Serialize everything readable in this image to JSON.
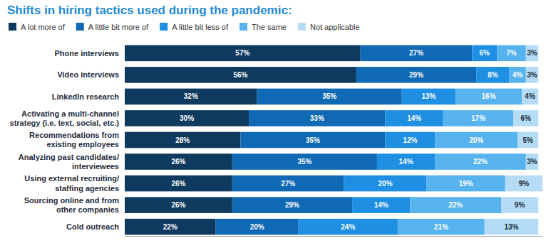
{
  "chart_data": {
    "type": "bar",
    "orientation": "horizontal",
    "stacked": true,
    "data_labels": true,
    "tick_labels": "y",
    "legend": "top-left",
    "title": "Shifts in hiring tactics used during the pandemic:",
    "categories": [
      "Phone interviews",
      "Video interviews",
      "LinkedIn research",
      "Activating a multi-channel\nstrategy (i.e. text, social, etc.)",
      "Recommendations from\nexisting employees",
      "Analyzing past candidates/\ninterviewees",
      "Using external recruiting/\nstaffing agencies",
      "Sourcing online and from\nother companies",
      "Cold outreach"
    ],
    "xlim": [
      0,
      101
    ],
    "series": [
      {
        "name": "A lot more of",
        "color": "#0f3a5f",
        "values": [
          57,
          56,
          32,
          30,
          28,
          26,
          26,
          26,
          22
        ],
        "value_labels": [
          "57%",
          "56%",
          "32%",
          "30%",
          "28%",
          "26%",
          "26%",
          "26%",
          "22%"
        ]
      },
      {
        "name": "A little bit more of",
        "color": "#0f69b4",
        "values": [
          27,
          29,
          35,
          33,
          35,
          35,
          27,
          29,
          20
        ],
        "value_labels": [
          "27%",
          "29%",
          "35%",
          "33%",
          "35%",
          "35%",
          "27%",
          "29%",
          "20%"
        ]
      },
      {
        "name": "A little bit less of",
        "color": "#1e8fe3",
        "values": [
          6,
          8,
          13,
          14,
          12,
          14,
          20,
          14,
          24
        ],
        "value_labels": [
          "6%",
          "8%",
          "13%",
          "14%",
          "12%",
          "14%",
          "20%",
          "14%",
          "24%"
        ]
      },
      {
        "name": "The same",
        "color": "#56b3ee",
        "values": [
          7,
          4,
          16,
          17,
          20,
          22,
          19,
          22,
          21
        ],
        "value_labels": [
          "7%",
          "4%",
          "16%",
          "17%",
          "20%",
          "22%",
          "19%",
          "22%",
          "21%"
        ]
      },
      {
        "name": "Not applicable",
        "color": "#b5dcf6",
        "values": [
          3,
          3,
          4,
          6,
          5,
          3,
          9,
          9,
          13
        ],
        "value_labels": [
          "3%",
          "3%",
          "4%",
          "6%",
          "5%",
          "3%",
          "9%",
          "9%",
          "13%"
        ]
      }
    ]
  }
}
